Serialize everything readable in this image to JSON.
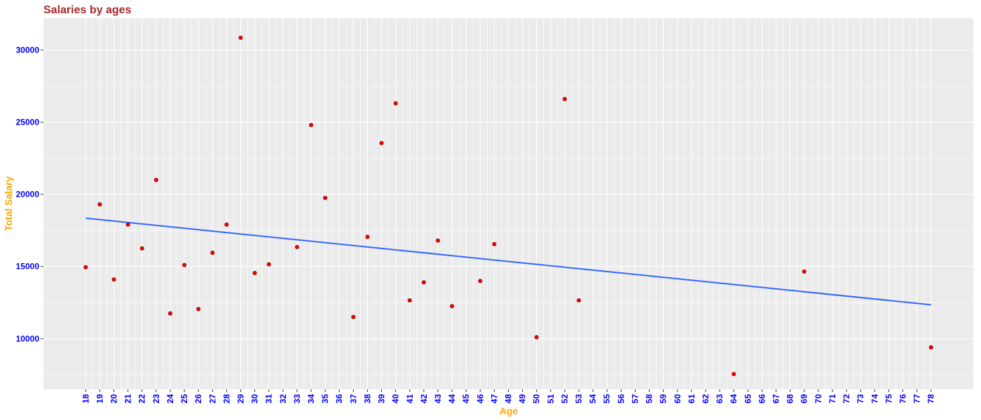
{
  "chart_data": {
    "type": "scatter",
    "title": "Salaries by ages",
    "xlabel": "Age",
    "ylabel": "Total Salary",
    "xlim": [
      15,
      81
    ],
    "ylim": [
      6500,
      32200
    ],
    "x_ticks": [
      18,
      19,
      20,
      21,
      22,
      23,
      24,
      25,
      26,
      27,
      28,
      29,
      30,
      31,
      32,
      33,
      34,
      35,
      36,
      37,
      38,
      39,
      40,
      41,
      42,
      43,
      44,
      45,
      46,
      47,
      48,
      49,
      50,
      51,
      52,
      53,
      54,
      55,
      56,
      57,
      58,
      59,
      60,
      61,
      62,
      63,
      64,
      65,
      66,
      67,
      68,
      69,
      70,
      71,
      72,
      73,
      74,
      75,
      76,
      77,
      78
    ],
    "y_ticks": [
      10000,
      15000,
      20000,
      25000,
      30000
    ],
    "grid": true,
    "points": [
      {
        "x": 18,
        "y": 14950
      },
      {
        "x": 19,
        "y": 19300
      },
      {
        "x": 20,
        "y": 14100
      },
      {
        "x": 21,
        "y": 17900
      },
      {
        "x": 22,
        "y": 16250
      },
      {
        "x": 23,
        "y": 21000
      },
      {
        "x": 24,
        "y": 11750
      },
      {
        "x": 25,
        "y": 15100
      },
      {
        "x": 26,
        "y": 12050
      },
      {
        "x": 27,
        "y": 15950
      },
      {
        "x": 28,
        "y": 17900
      },
      {
        "x": 29,
        "y": 30850
      },
      {
        "x": 30,
        "y": 14550
      },
      {
        "x": 31,
        "y": 15150
      },
      {
        "x": 33,
        "y": 16350
      },
      {
        "x": 34,
        "y": 24800
      },
      {
        "x": 35,
        "y": 19750
      },
      {
        "x": 37,
        "y": 11500
      },
      {
        "x": 38,
        "y": 17050
      },
      {
        "x": 39,
        "y": 23550
      },
      {
        "x": 40,
        "y": 26300
      },
      {
        "x": 41,
        "y": 12650
      },
      {
        "x": 42,
        "y": 13900
      },
      {
        "x": 43,
        "y": 16800
      },
      {
        "x": 44,
        "y": 12250
      },
      {
        "x": 46,
        "y": 14000
      },
      {
        "x": 47,
        "y": 16550
      },
      {
        "x": 50,
        "y": 10100
      },
      {
        "x": 52,
        "y": 26600
      },
      {
        "x": 53,
        "y": 12650
      },
      {
        "x": 64,
        "y": 7550
      },
      {
        "x": 69,
        "y": 14650
      },
      {
        "x": 78,
        "y": 9400
      }
    ],
    "trend_line": {
      "type": "linear",
      "x": [
        18,
        78
      ],
      "y": [
        18350,
        12350
      ]
    },
    "colors": {
      "title": "#a52a2a",
      "axis_title": "#ffa500",
      "tick_label": "#0000ff",
      "point_fill": "#ff0000",
      "point_stroke": "#8b0000",
      "trend_line": "#3366ff",
      "panel_bg": "#ebebeb",
      "grid": "#ffffff"
    }
  }
}
